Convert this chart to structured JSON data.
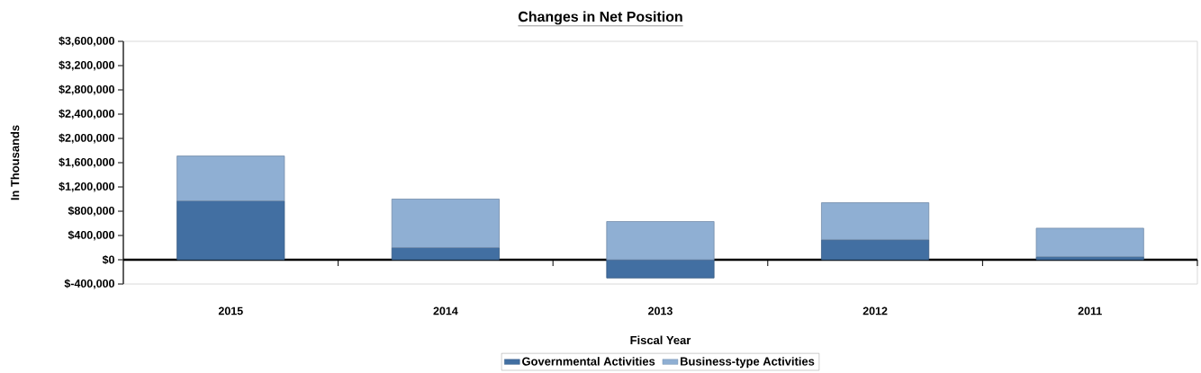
{
  "chart_data": {
    "type": "bar",
    "title": "Changes in Net Position",
    "xlabel": "Fiscal Year",
    "ylabel": "In Thousands",
    "stacked": true,
    "legend": "bottom",
    "categories": [
      "2015",
      "2014",
      "2013",
      "2012",
      "2011"
    ],
    "series": [
      {
        "name": "Governmental Activities",
        "color": "#426fa2",
        "values": [
          970000,
          200000,
          -300000,
          330000,
          50000
        ]
      },
      {
        "name": "Business-type Activities",
        "color": "#8fafd3",
        "values": [
          740000,
          800000,
          630000,
          610000,
          470000
        ]
      }
    ],
    "ylim": [
      -400000,
      3600000
    ],
    "yticks": [
      {
        "value": -400000,
        "label": "$-400,000"
      },
      {
        "value": 0,
        "label": "$0"
      },
      {
        "value": 400000,
        "label": "$400,000"
      },
      {
        "value": 800000,
        "label": "$800,000"
      },
      {
        "value": 1200000,
        "label": "$1,200,000"
      },
      {
        "value": 1600000,
        "label": "$1,600,000"
      },
      {
        "value": 2000000,
        "label": "$2,000,000"
      },
      {
        "value": 2400000,
        "label": "$2,400,000"
      },
      {
        "value": 2800000,
        "label": "$2,800,000"
      },
      {
        "value": 3200000,
        "label": "$3,200,000"
      },
      {
        "value": 3600000,
        "label": "$3,600,000"
      }
    ]
  }
}
